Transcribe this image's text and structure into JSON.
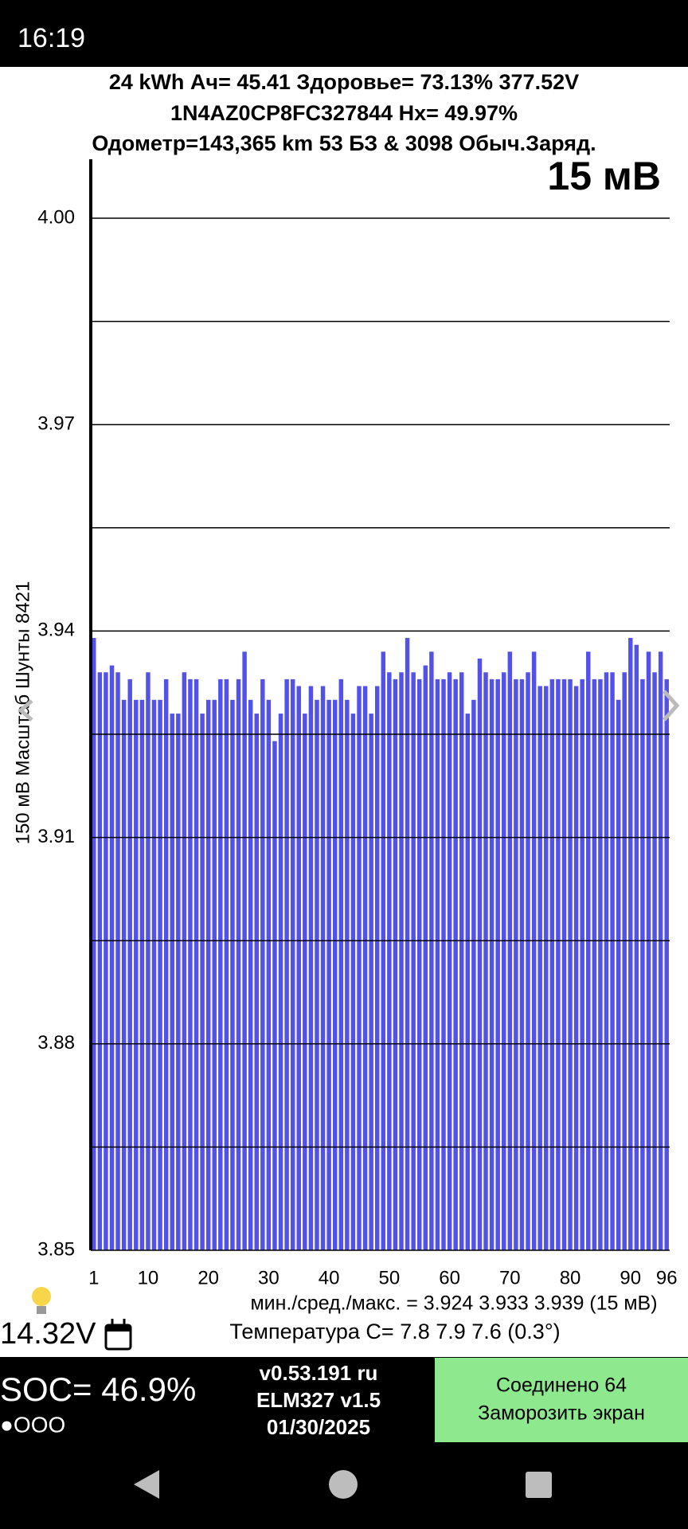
{
  "status_bar": {
    "time": "16:19"
  },
  "header": {
    "line1": "24 kWh  Ач= 45.41  Здоровье= 73.13%  377.52V",
    "line2": "1N4AZ0CP8FC327844   Hx= 49.97%",
    "line3": "Одометр=143,365 km 53 БЗ & 3098 Обыч.Заряд."
  },
  "chart_data": {
    "type": "bar",
    "scale_label": "15 мВ",
    "y_label": "150 мВ Масштаб   Шунты 8421",
    "categories": [
      1,
      null,
      null,
      null,
      null,
      null,
      null,
      null,
      null,
      10,
      null,
      null,
      null,
      null,
      null,
      null,
      null,
      null,
      null,
      20,
      null,
      null,
      null,
      null,
      null,
      null,
      null,
      null,
      null,
      30,
      null,
      null,
      null,
      null,
      null,
      null,
      null,
      null,
      null,
      40,
      null,
      null,
      null,
      null,
      null,
      null,
      null,
      null,
      null,
      50,
      null,
      null,
      null,
      null,
      null,
      null,
      null,
      null,
      null,
      60,
      null,
      null,
      null,
      null,
      null,
      null,
      null,
      null,
      null,
      70,
      null,
      null,
      null,
      null,
      null,
      null,
      null,
      null,
      null,
      80,
      null,
      null,
      null,
      null,
      null,
      null,
      null,
      null,
      null,
      90,
      null,
      null,
      null,
      null,
      null,
      96
    ],
    "values": [
      3.939,
      3.934,
      3.934,
      3.935,
      3.934,
      3.93,
      3.933,
      3.93,
      3.93,
      3.934,
      3.93,
      3.93,
      3.933,
      3.928,
      3.928,
      3.934,
      3.933,
      3.933,
      3.928,
      3.93,
      3.93,
      3.933,
      3.933,
      3.93,
      3.933,
      3.937,
      3.93,
      3.928,
      3.933,
      3.93,
      3.924,
      3.928,
      3.933,
      3.933,
      3.932,
      3.928,
      3.932,
      3.93,
      3.932,
      3.93,
      3.93,
      3.933,
      3.93,
      3.928,
      3.932,
      3.932,
      3.928,
      3.932,
      3.937,
      3.934,
      3.933,
      3.934,
      3.939,
      3.934,
      3.933,
      3.935,
      3.937,
      3.933,
      3.933,
      3.934,
      3.933,
      3.934,
      3.928,
      3.93,
      3.936,
      3.934,
      3.933,
      3.933,
      3.934,
      3.937,
      3.933,
      3.933,
      3.934,
      3.937,
      3.932,
      3.932,
      3.933,
      3.933,
      3.933,
      3.933,
      3.932,
      3.933,
      3.937,
      3.933,
      3.933,
      3.934,
      3.934,
      3.93,
      3.934,
      3.939,
      3.938,
      3.933,
      3.937,
      3.934,
      3.937,
      3.933
    ],
    "color": "#5252ea",
    "ylim": [
      3.85,
      4.0
    ],
    "yticks": [
      3.85,
      3.88,
      3.91,
      3.94,
      3.97,
      {
        "value": 4.0,
        "label": "4.00"
      }
    ],
    "minor_yticks": [
      3.865,
      3.895,
      3.925,
      3.955,
      3.985
    ],
    "grid": true
  },
  "footer": {
    "stats": "мин./сред./макс. = 3.924 3.933 3.939  (15 мВ)",
    "voltage_12v": "14.32V",
    "temperature": "Температура C= 7.8  7.9  7.6  (0.3°)"
  },
  "bottom_panel": {
    "soc": "SOC= 46.9%",
    "dots": "●OOO",
    "version": "v0.53.191 ru",
    "adapter": "ELM327 v1.5",
    "date": "01/30/2025",
    "button_line1": "Соединено 64",
    "button_line2": "Заморозить экран"
  }
}
